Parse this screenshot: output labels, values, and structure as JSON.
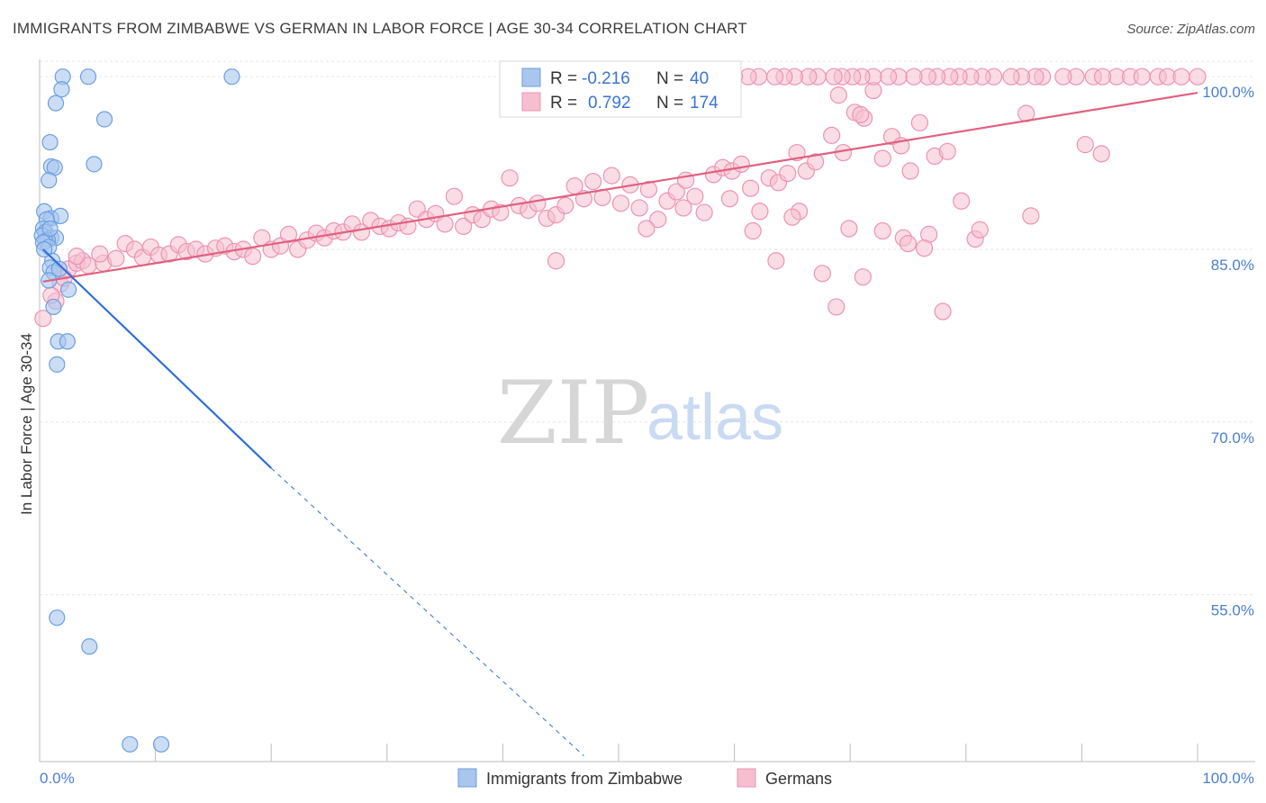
{
  "title": "IMMIGRANTS FROM ZIMBABWE VS GERMAN IN LABOR FORCE | AGE 30-34 CORRELATION CHART",
  "source": "Source: ZipAtlas.com",
  "watermark": {
    "zip": "ZIP",
    "atlas": "atlas"
  },
  "legend": {
    "rows": [
      {
        "r_label": "R =",
        "r_value": "-0.216",
        "n_label": "N =",
        "n_value": "40",
        "color": "#7aa7e8"
      },
      {
        "r_label": "R =",
        "r_value": "0.792",
        "n_label": "N =",
        "n_value": "174",
        "color": "#f1a0bb"
      }
    ]
  },
  "colors": {
    "blue_fill": "#a9c6ee",
    "blue_stroke": "#6a9fe0",
    "blue_line": "#2f6fd6",
    "pink_fill": "#f6bfd0",
    "pink_stroke": "#ec93b2",
    "pink_line": "#e0607f",
    "grid": "#e6e6e6",
    "tick_text": "#4a7fd0"
  },
  "chart_data": {
    "type": "scatter",
    "title": "IMMIGRANTS FROM ZIMBABWE VS GERMAN IN LABOR FORCE | AGE 30-34 CORRELATION CHART",
    "xlabel": "",
    "ylabel": "In Labor Force | Age 30-34",
    "xlim": [
      0,
      100
    ],
    "ylim": [
      40.5,
      101.5
    ],
    "x_tick_labels": [
      "0.0%",
      "100.0%"
    ],
    "y_ticks": [
      55,
      70,
      85,
      100
    ],
    "y_tick_labels": [
      "55.0%",
      "70.0%",
      "85.0%",
      "100.0%"
    ],
    "grid": true,
    "legend_position": "top-center",
    "series": [
      {
        "name": "Immigrants from Zimbabwe",
        "R": -0.216,
        "N": 40,
        "trend": {
          "x": [
            0.3,
            20,
            47
          ],
          "y": [
            85,
            66,
            41
          ],
          "solid_until_x": 20
        },
        "points": [
          [
            2,
            100
          ],
          [
            4.2,
            100
          ],
          [
            16.6,
            100
          ],
          [
            1.9,
            98.9
          ],
          [
            1.4,
            97.7
          ],
          [
            5.6,
            96.3
          ],
          [
            0.9,
            94.3
          ],
          [
            1.0,
            92.2
          ],
          [
            1.3,
            92.1
          ],
          [
            4.7,
            92.4
          ],
          [
            0.8,
            91.0
          ],
          [
            0.4,
            88.3
          ],
          [
            1.0,
            87.7
          ],
          [
            1.8,
            87.9
          ],
          [
            0.6,
            87.6
          ],
          [
            0.3,
            86.8
          ],
          [
            0.5,
            86.5
          ],
          [
            0.2,
            86.2
          ],
          [
            1.0,
            86.0
          ],
          [
            1.4,
            86.0
          ],
          [
            0.7,
            85.8
          ],
          [
            0.5,
            85.7
          ],
          [
            0.3,
            85.6
          ],
          [
            0.8,
            85.2
          ],
          [
            1.1,
            84.0
          ],
          [
            0.9,
            83.4
          ],
          [
            1.2,
            83.0
          ],
          [
            0.8,
            82.3
          ],
          [
            1.7,
            83.3
          ],
          [
            2.5,
            81.5
          ],
          [
            1.2,
            80.0
          ],
          [
            1.6,
            77.0
          ],
          [
            2.4,
            77.0
          ],
          [
            1.5,
            75.0
          ],
          [
            1.5,
            53.0
          ],
          [
            4.3,
            50.5
          ],
          [
            7.8,
            42.0
          ],
          [
            10.5,
            42.0
          ],
          [
            0.4,
            85.0
          ],
          [
            0.9,
            86.8
          ]
        ]
      },
      {
        "name": "Germans",
        "R": 0.792,
        "N": 174,
        "trend": {
          "x": [
            0.3,
            100
          ],
          "y": [
            82.2,
            98.6
          ]
        },
        "points": [
          [
            0.3,
            79.0
          ],
          [
            1.4,
            80.5
          ],
          [
            1.8,
            82.0
          ],
          [
            2.5,
            83.3
          ],
          [
            3.2,
            83.8
          ],
          [
            3.7,
            84.0
          ],
          [
            4.2,
            83.6
          ],
          [
            5.5,
            83.8
          ],
          [
            6.6,
            84.2
          ],
          [
            7.4,
            85.5
          ],
          [
            8.2,
            85.0
          ],
          [
            8.9,
            84.3
          ],
          [
            9.6,
            85.2
          ],
          [
            10.3,
            84.5
          ],
          [
            11.2,
            84.6
          ],
          [
            12.0,
            85.4
          ],
          [
            12.7,
            84.8
          ],
          [
            13.5,
            85.0
          ],
          [
            14.3,
            84.6
          ],
          [
            15.2,
            85.1
          ],
          [
            16.0,
            85.3
          ],
          [
            16.8,
            84.8
          ],
          [
            17.6,
            85.0
          ],
          [
            18.4,
            84.4
          ],
          [
            19.2,
            86.0
          ],
          [
            20.0,
            85.0
          ],
          [
            20.8,
            85.3
          ],
          [
            21.5,
            86.3
          ],
          [
            22.3,
            85.0
          ],
          [
            23.1,
            85.8
          ],
          [
            23.9,
            86.4
          ],
          [
            24.6,
            86.0
          ],
          [
            25.4,
            86.6
          ],
          [
            26.2,
            86.5
          ],
          [
            27.0,
            87.2
          ],
          [
            27.8,
            86.5
          ],
          [
            28.6,
            87.5
          ],
          [
            29.4,
            87.0
          ],
          [
            30.2,
            86.8
          ],
          [
            31.0,
            87.3
          ],
          [
            31.8,
            87.0
          ],
          [
            32.6,
            88.5
          ],
          [
            33.4,
            87.6
          ],
          [
            34.2,
            88.1
          ],
          [
            35.0,
            87.2
          ],
          [
            35.8,
            89.6
          ],
          [
            36.6,
            87.0
          ],
          [
            37.4,
            88.0
          ],
          [
            38.2,
            87.6
          ],
          [
            39.0,
            88.5
          ],
          [
            39.8,
            88.2
          ],
          [
            40.6,
            91.2
          ],
          [
            41.4,
            88.8
          ],
          [
            42.2,
            88.4
          ],
          [
            43.0,
            89.0
          ],
          [
            43.8,
            87.7
          ],
          [
            44.6,
            88.0
          ],
          [
            45.4,
            88.8
          ],
          [
            46.2,
            90.5
          ],
          [
            47.0,
            89.4
          ],
          [
            47.8,
            90.9
          ],
          [
            48.6,
            89.5
          ],
          [
            49.4,
            91.4
          ],
          [
            50.2,
            89.0
          ],
          [
            51.0,
            90.6
          ],
          [
            51.8,
            88.6
          ],
          [
            52.6,
            90.2
          ],
          [
            53.4,
            87.6
          ],
          [
            54.2,
            89.2
          ],
          [
            55.0,
            90.0
          ],
          [
            55.8,
            91.0
          ],
          [
            56.6,
            89.6
          ],
          [
            57.4,
            88.2
          ],
          [
            58.2,
            91.5
          ],
          [
            59.0,
            92.1
          ],
          [
            59.8,
            91.8
          ],
          [
            60.6,
            92.4
          ],
          [
            61.4,
            90.3
          ],
          [
            62.2,
            88.3
          ],
          [
            63.0,
            91.2
          ],
          [
            63.8,
            90.8
          ],
          [
            64.6,
            91.6
          ],
          [
            65.4,
            93.4
          ],
          [
            66.2,
            91.8
          ],
          [
            67.0,
            92.6
          ],
          [
            68.4,
            94.9
          ],
          [
            69.4,
            93.4
          ],
          [
            70.4,
            96.9
          ],
          [
            71.2,
            96.4
          ],
          [
            72.0,
            98.8
          ],
          [
            72.8,
            92.9
          ],
          [
            73.6,
            94.8
          ],
          [
            74.4,
            94.0
          ],
          [
            75.2,
            91.8
          ],
          [
            76.0,
            96.0
          ],
          [
            77.3,
            93.1
          ],
          [
            78.4,
            93.5
          ],
          [
            69.0,
            98.4
          ],
          [
            70.9,
            96.7
          ],
          [
            65.6,
            88.3
          ],
          [
            63.6,
            84.0
          ],
          [
            52.4,
            86.8
          ],
          [
            55.6,
            88.6
          ],
          [
            59.6,
            89.4
          ],
          [
            61.6,
            86.6
          ],
          [
            65.0,
            87.8
          ],
          [
            69.9,
            86.8
          ],
          [
            72.8,
            86.6
          ],
          [
            74.6,
            86.0
          ],
          [
            76.8,
            86.3
          ],
          [
            67.6,
            82.9
          ],
          [
            71.1,
            82.6
          ],
          [
            68.8,
            80.0
          ],
          [
            75.0,
            85.5
          ],
          [
            76.4,
            85.1
          ],
          [
            79.6,
            89.2
          ],
          [
            80.8,
            85.9
          ],
          [
            85.6,
            87.9
          ],
          [
            78.0,
            79.6
          ],
          [
            81.2,
            86.7
          ],
          [
            91.7,
            93.3
          ],
          [
            85.2,
            96.8
          ],
          [
            90.3,
            94.1
          ],
          [
            93.0,
            100
          ],
          [
            94.2,
            100
          ],
          [
            95.2,
            100
          ],
          [
            96.6,
            100
          ],
          [
            97.4,
            100
          ],
          [
            98.6,
            100
          ],
          [
            100,
            100
          ],
          [
            91.0,
            100
          ],
          [
            91.8,
            100
          ],
          [
            89.5,
            100
          ],
          [
            88.4,
            100
          ],
          [
            86.6,
            100
          ],
          [
            86.0,
            100
          ],
          [
            84.8,
            100
          ],
          [
            83.9,
            100
          ],
          [
            82.4,
            100
          ],
          [
            81.4,
            100
          ],
          [
            80.4,
            100
          ],
          [
            79.4,
            100
          ],
          [
            78.6,
            100
          ],
          [
            77.5,
            100
          ],
          [
            76.7,
            100
          ],
          [
            75.5,
            100
          ],
          [
            74.2,
            100
          ],
          [
            73.3,
            100
          ],
          [
            72.0,
            100
          ],
          [
            71.0,
            100
          ],
          [
            70.2,
            100
          ],
          [
            69.3,
            100
          ],
          [
            68.6,
            100
          ],
          [
            67.2,
            100
          ],
          [
            66.4,
            100
          ],
          [
            65.2,
            100
          ],
          [
            64.3,
            100
          ],
          [
            63.5,
            100
          ],
          [
            62.1,
            100
          ],
          [
            61.2,
            100
          ],
          [
            60.0,
            100
          ],
          [
            58.9,
            100
          ],
          [
            57.8,
            100
          ],
          [
            56.6,
            100
          ],
          [
            55.5,
            100
          ],
          [
            54.4,
            100
          ],
          [
            53.3,
            100
          ],
          [
            52.2,
            100
          ],
          [
            44.6,
            84.0
          ],
          [
            3.2,
            84.4
          ],
          [
            5.2,
            84.6
          ],
          [
            1.0,
            81.0
          ],
          [
            2.1,
            82.5
          ]
        ]
      }
    ]
  },
  "bottom_legend": [
    {
      "label": "Immigrants from Zimbabwe",
      "color": "#a9c6ee"
    },
    {
      "label": "Germans",
      "color": "#f6bfd0"
    }
  ]
}
